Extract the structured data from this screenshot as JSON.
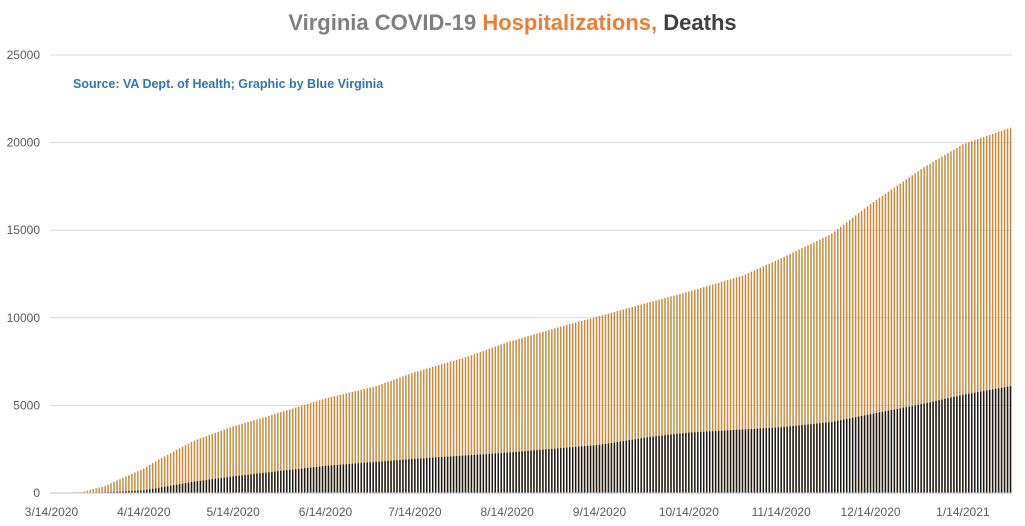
{
  "chart_data": {
    "type": "bar",
    "title_parts": [
      {
        "text": "Virginia COVID-19 ",
        "color": "#7f7f7f"
      },
      {
        "text": "Hospitalizations,",
        "color": "#ed7d31"
      },
      {
        "text": " Deaths",
        "color": "#404040"
      }
    ],
    "source_note": "Source: VA Dept. of Health; Graphic by Blue Virginia",
    "xlabel": "",
    "ylabel": "",
    "ylim": [
      0,
      25000
    ],
    "yticks": [
      0,
      5000,
      10000,
      15000,
      20000,
      25000
    ],
    "grid": true,
    "legend": "none",
    "x_tick_labels": [
      "3/14/2020",
      "4/14/2020",
      "5/14/2020",
      "6/14/2020",
      "7/14/2020",
      "8/14/2020",
      "9/14/2020",
      "10/14/2020",
      "11/14/2020",
      "12/14/2020",
      "1/14/2021"
    ],
    "x_start": "3/14/2020",
    "x_end": "1/30/2021",
    "series": [
      {
        "name": "Hospitalizations",
        "color": "#c8893a",
        "anchors": [
          [
            "3/14/2020",
            0
          ],
          [
            "3/24/2020",
            50
          ],
          [
            "4/1/2020",
            400
          ],
          [
            "4/14/2020",
            1400
          ],
          [
            "4/20/2020",
            2000
          ],
          [
            "5/1/2020",
            3000
          ],
          [
            "5/14/2020",
            3800
          ],
          [
            "5/24/2020",
            4300
          ],
          [
            "6/14/2020",
            5400
          ],
          [
            "7/1/2020",
            6100
          ],
          [
            "7/14/2020",
            6900
          ],
          [
            "8/1/2020",
            7800
          ],
          [
            "8/14/2020",
            8600
          ],
          [
            "9/1/2020",
            9500
          ],
          [
            "9/14/2020",
            10100
          ],
          [
            "10/1/2020",
            10900
          ],
          [
            "10/14/2020",
            11500
          ],
          [
            "11/1/2020",
            12400
          ],
          [
            "11/14/2020",
            13400
          ],
          [
            "12/1/2020",
            14800
          ],
          [
            "12/14/2020",
            16500
          ],
          [
            "1/1/2021",
            18600
          ],
          [
            "1/14/2021",
            19900
          ],
          [
            "1/30/2021",
            20850
          ]
        ]
      },
      {
        "name": "Deaths",
        "color": "#1a1a1a",
        "anchors": [
          [
            "3/14/2020",
            0
          ],
          [
            "3/24/2020",
            10
          ],
          [
            "4/1/2020",
            40
          ],
          [
            "4/14/2020",
            150
          ],
          [
            "5/1/2020",
            650
          ],
          [
            "5/14/2020",
            950
          ],
          [
            "6/1/2020",
            1300
          ],
          [
            "6/14/2020",
            1550
          ],
          [
            "7/14/2020",
            1950
          ],
          [
            "8/14/2020",
            2300
          ],
          [
            "9/14/2020",
            2750
          ],
          [
            "10/1/2020",
            3200
          ],
          [
            "10/14/2020",
            3450
          ],
          [
            "11/14/2020",
            3750
          ],
          [
            "12/1/2020",
            4050
          ],
          [
            "12/14/2020",
            4500
          ],
          [
            "1/1/2021",
            5100
          ],
          [
            "1/14/2021",
            5600
          ],
          [
            "1/30/2021",
            6100
          ]
        ]
      }
    ]
  }
}
